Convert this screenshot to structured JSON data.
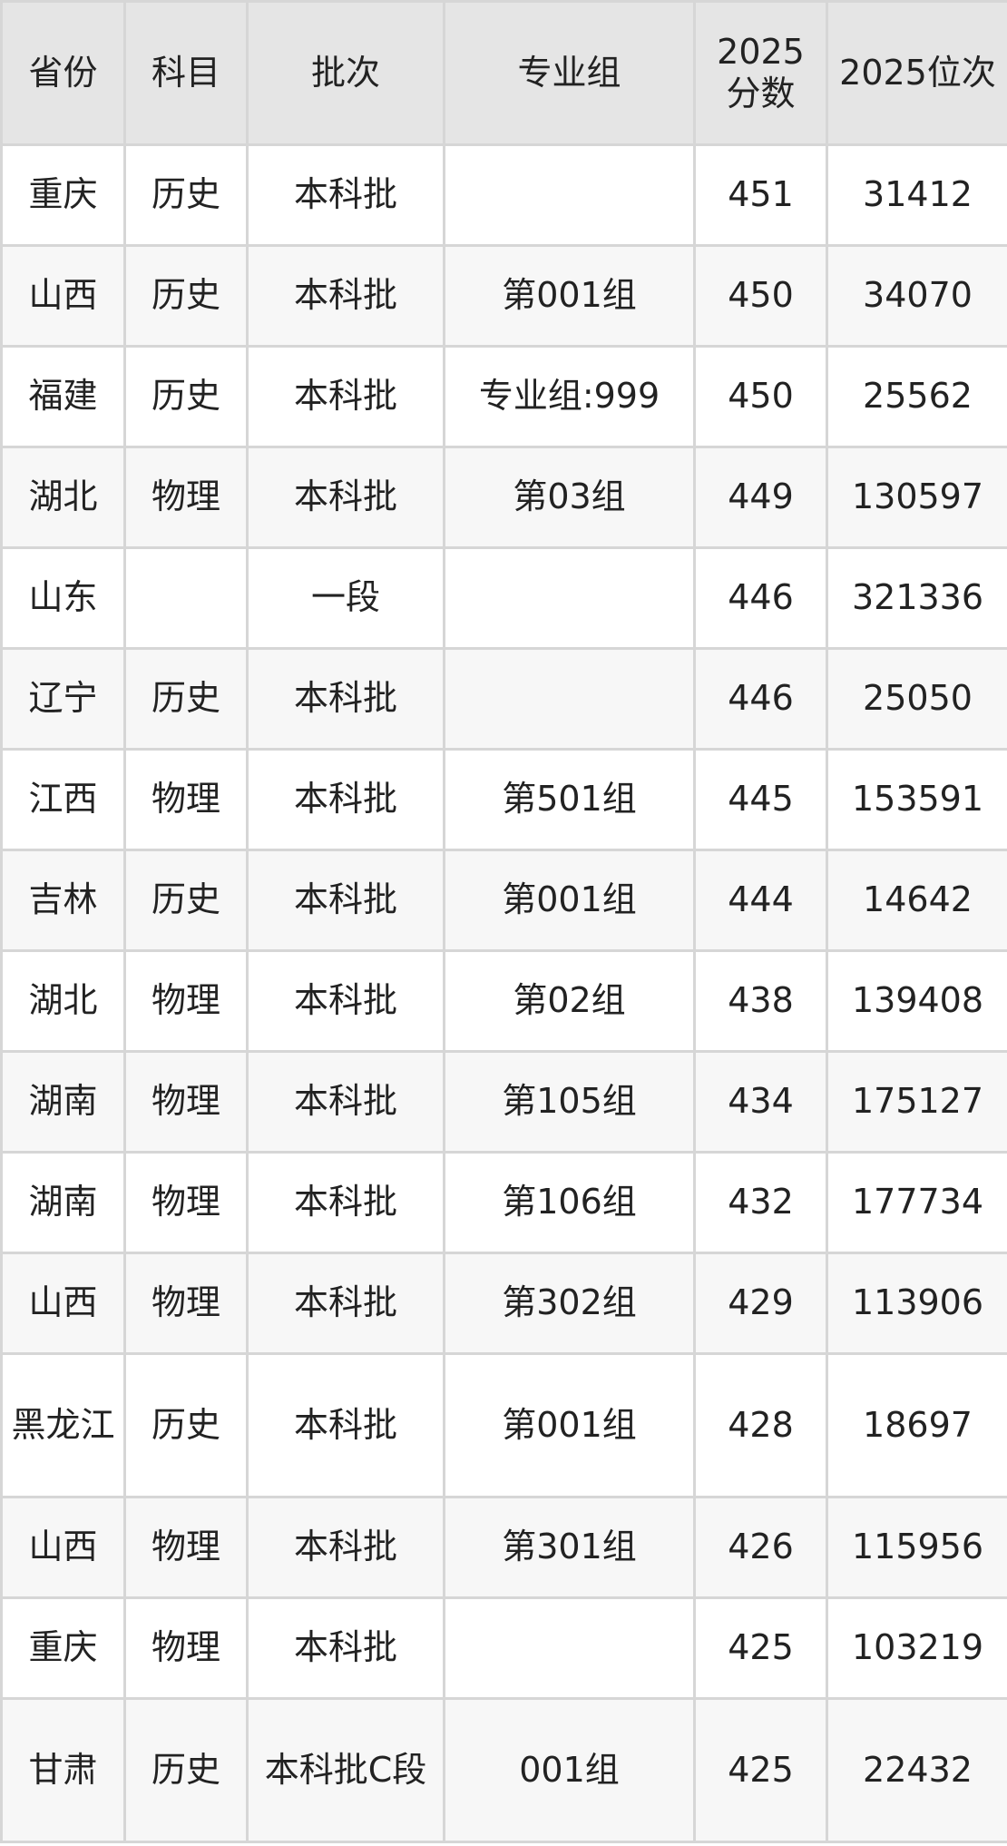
{
  "headers": [
    "省份",
    "科目",
    "批次",
    "专业组",
    "2025分数",
    "2025位次"
  ],
  "rows": [
    [
      "重庆",
      "历史",
      "本科批",
      "",
      "451",
      "31412"
    ],
    [
      "山西",
      "历史",
      "本科批",
      "第001组",
      "450",
      "34070"
    ],
    [
      "福建",
      "历史",
      "本科批",
      "专业组:999",
      "450",
      "25562"
    ],
    [
      "湖北",
      "物理",
      "本科批",
      "第03组",
      "449",
      "130597"
    ],
    [
      "山东",
      "",
      "一段",
      "",
      "446",
      "321336"
    ],
    [
      "辽宁",
      "历史",
      "本科批",
      "",
      "446",
      "25050"
    ],
    [
      "江西",
      "物理",
      "本科批",
      "第501组",
      "445",
      "153591"
    ],
    [
      "吉林",
      "历史",
      "本科批",
      "第001组",
      "444",
      "14642"
    ],
    [
      "湖北",
      "物理",
      "本科批",
      "第02组",
      "438",
      "139408"
    ],
    [
      "湖南",
      "物理",
      "本科批",
      "第105组",
      "434",
      "175127"
    ],
    [
      "湖南",
      "物理",
      "本科批",
      "第106组",
      "432",
      "177734"
    ],
    [
      "山西",
      "物理",
      "本科批",
      "第302组",
      "429",
      "113906"
    ],
    [
      "黑龙江",
      "历史",
      "本科批",
      "第001组",
      "428",
      "18697"
    ],
    [
      "山西",
      "物理",
      "本科批",
      "第301组",
      "426",
      "115956"
    ],
    [
      "重庆",
      "物理",
      "本科批",
      "",
      "425",
      "103219"
    ],
    [
      "甘肃",
      "历史",
      "本科批C段",
      "001组",
      "425",
      "22432"
    ]
  ]
}
